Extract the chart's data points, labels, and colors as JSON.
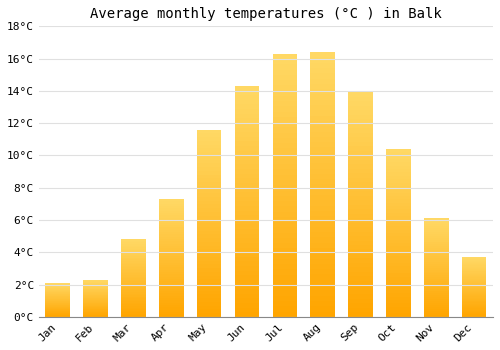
{
  "title": "Average monthly temperatures (°C ) in Balk",
  "months": [
    "Jan",
    "Feb",
    "Mar",
    "Apr",
    "May",
    "Jun",
    "Jul",
    "Aug",
    "Sep",
    "Oct",
    "Nov",
    "Dec"
  ],
  "temperatures": [
    2.1,
    2.3,
    4.8,
    7.3,
    11.6,
    14.3,
    16.3,
    16.4,
    13.9,
    10.4,
    6.1,
    3.7
  ],
  "bar_color": "#FFA500",
  "bar_top_color": "#FFD966",
  "ylim": [
    0,
    18
  ],
  "yticks": [
    0,
    2,
    4,
    6,
    8,
    10,
    12,
    14,
    16,
    18
  ],
  "background_color": "#ffffff",
  "grid_color": "#e0e0e0",
  "title_fontsize": 10,
  "tick_fontsize": 8,
  "font_family": "monospace",
  "bar_width": 0.65
}
